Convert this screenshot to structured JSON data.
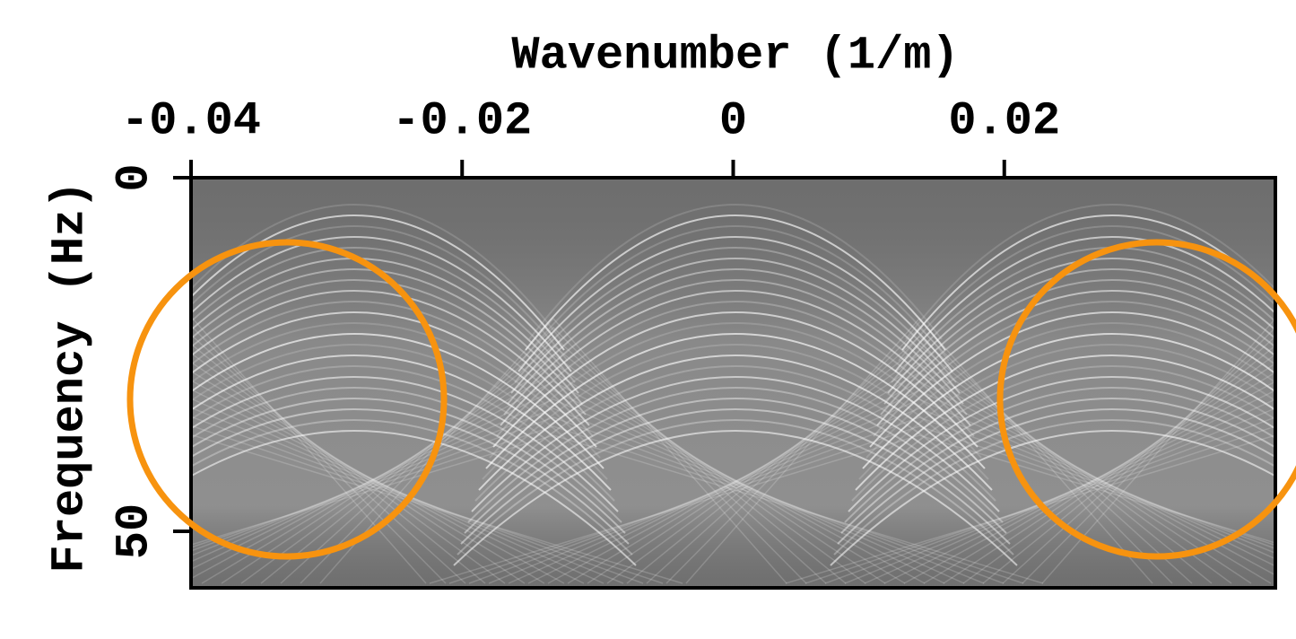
{
  "chart_data": {
    "type": "image",
    "title": "Wavenumber (1/m)",
    "y_label": "Frequency (Hz)",
    "xlim": [
      -0.04,
      0.04
    ],
    "xticks": [
      -0.04,
      -0.02,
      0,
      0.02
    ],
    "ylim": [
      0,
      58
    ],
    "yticks": [
      0,
      50
    ],
    "y_inverted": true,
    "x_axis_position": "top"
  }
}
